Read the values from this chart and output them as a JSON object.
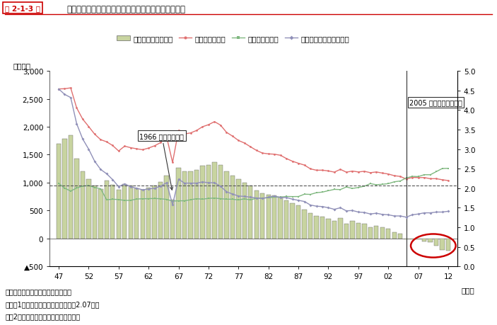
{
  "header_label": "第 2-1-3 図",
  "header_title": "出生数、死亡数、自然増減数、合計特殊出生率の推移",
  "years": [
    1947,
    1948,
    1949,
    1950,
    1951,
    1952,
    1953,
    1954,
    1955,
    1956,
    1957,
    1958,
    1959,
    1960,
    1961,
    1962,
    1963,
    1964,
    1965,
    1966,
    1967,
    1968,
    1969,
    1970,
    1971,
    1972,
    1973,
    1974,
    1975,
    1976,
    1977,
    1978,
    1979,
    1980,
    1981,
    1982,
    1983,
    1984,
    1985,
    1986,
    1987,
    1988,
    1989,
    1990,
    1991,
    1992,
    1993,
    1994,
    1995,
    1996,
    1997,
    1998,
    1999,
    2000,
    2001,
    2002,
    2003,
    2004,
    2005,
    2006,
    2007,
    2008,
    2009,
    2010,
    2011,
    2012
  ],
  "births": [
    2678,
    2682,
    2697,
    2338,
    2138,
    2005,
    1868,
    1770,
    1731,
    1665,
    1567,
    1653,
    1626,
    1606,
    1589,
    1619,
    1660,
    1717,
    1824,
    1361,
    1936,
    1872,
    1890,
    1934,
    2001,
    2038,
    2092,
    2030,
    1901,
    1833,
    1755,
    1709,
    1642,
    1577,
    1529,
    1515,
    1509,
    1490,
    1431,
    1383,
    1347,
    1314,
    1247,
    1222,
    1223,
    1209,
    1188,
    1238,
    1187,
    1207,
    1191,
    1203,
    1178,
    1191,
    1171,
    1154,
    1124,
    1111,
    1063,
    1093,
    1090,
    1091,
    1070,
    1071,
    1051,
    1037
  ],
  "deaths": [
    986,
    901,
    849,
    904,
    938,
    948,
    914,
    891,
    693,
    703,
    697,
    681,
    683,
    706,
    711,
    713,
    716,
    711,
    700,
    670,
    674,
    675,
    693,
    712,
    703,
    718,
    723,
    712,
    703,
    703,
    690,
    710,
    690,
    722,
    721,
    730,
    740,
    740,
    752,
    750,
    751,
    793,
    789,
    820,
    830,
    856,
    879,
    876,
    922,
    896,
    913,
    936,
    982,
    962,
    970,
    982,
    1015,
    1029,
    1084,
    1112,
    1108,
    1142,
    1141,
    1197,
    1253,
    1256
  ],
  "natural_increase": [
    1692,
    1781,
    1848,
    1434,
    1200,
    1057,
    954,
    879,
    1038,
    962,
    870,
    972,
    943,
    900,
    878,
    906,
    944,
    1006,
    1124,
    691,
    1262,
    1197,
    1197,
    1222,
    1298,
    1320,
    1369,
    1318,
    1198,
    1130,
    1065,
    999,
    952,
    855,
    808,
    785,
    769,
    750,
    679,
    633,
    596,
    521,
    458,
    402,
    393,
    353,
    309,
    362,
    265,
    311,
    278,
    267,
    196,
    229,
    201,
    172,
    109,
    82,
    -21,
    -19,
    -18,
    -51,
    -71,
    -126,
    -202,
    -219
  ],
  "tfr": [
    4.54,
    4.4,
    4.32,
    3.65,
    3.26,
    3.0,
    2.69,
    2.48,
    2.37,
    2.22,
    2.04,
    2.11,
    2.04,
    2.0,
    1.96,
    1.98,
    2.0,
    2.05,
    2.14,
    1.58,
    2.23,
    2.13,
    2.13,
    2.13,
    2.16,
    2.14,
    2.14,
    2.05,
    1.91,
    1.85,
    1.8,
    1.79,
    1.77,
    1.75,
    1.74,
    1.77,
    1.8,
    1.76,
    1.76,
    1.72,
    1.69,
    1.66,
    1.57,
    1.54,
    1.53,
    1.5,
    1.46,
    1.5,
    1.42,
    1.43,
    1.39,
    1.38,
    1.34,
    1.36,
    1.33,
    1.32,
    1.29,
    1.29,
    1.26,
    1.32,
    1.34,
    1.37,
    1.37,
    1.39,
    1.39,
    1.41
  ],
  "ylabel_left": "（千人）",
  "ylim_left": [
    -500,
    3000
  ],
  "ylim_right": [
    0.0,
    5.0
  ],
  "yticks_left": [
    -500,
    0,
    500,
    1000,
    1500,
    2000,
    2500,
    3000
  ],
  "ytick_labels_left": [
    "▲500",
    "0",
    "500",
    "1,000",
    "1,500",
    "2,000",
    "2,500",
    "3,000"
  ],
  "yticks_right": [
    0.0,
    0.5,
    1.0,
    1.5,
    2.0,
    2.5,
    3.0,
    3.5,
    4.0,
    4.5,
    5.0
  ],
  "xtick_labels": [
    "47",
    "52",
    "57",
    "62",
    "67",
    "72",
    "77",
    "82",
    "87",
    "92",
    "97",
    "02",
    "07",
    "12"
  ],
  "xtick_years": [
    1947,
    1952,
    1957,
    1962,
    1967,
    1972,
    1977,
    1982,
    1987,
    1992,
    1997,
    2002,
    2007,
    2012
  ],
  "annotation_1966": "1966 年ひのえうま",
  "annotation_2005": "2005 年初の人口自然減",
  "xlabel": "（年）",
  "note1": "資料：厚生労働省「人口動態統計」",
  "note2": "（注）1．破線は、人口置換水準線（2.07）。",
  "note3": "　　2．自然増減数＝出生数－死亡数。",
  "legend_bar": "自然増減数（左軸）",
  "legend_birth": "出生数（左軸）",
  "legend_death": "死亡数（左軸）",
  "legend_tfr": "合計特殊出生率（右軸）",
  "bar_color": "#c8d4a0",
  "bar_edge_color": "#666666",
  "birth_color": "#e07070",
  "death_color": "#80b880",
  "tfr_color": "#9090b8",
  "dashed_line_value": 2.07,
  "dashed_line_color": "#555555",
  "circle_color": "#cc0000",
  "background_color": "#ffffff",
  "xlim": [
    1945.5,
    2013.5
  ]
}
